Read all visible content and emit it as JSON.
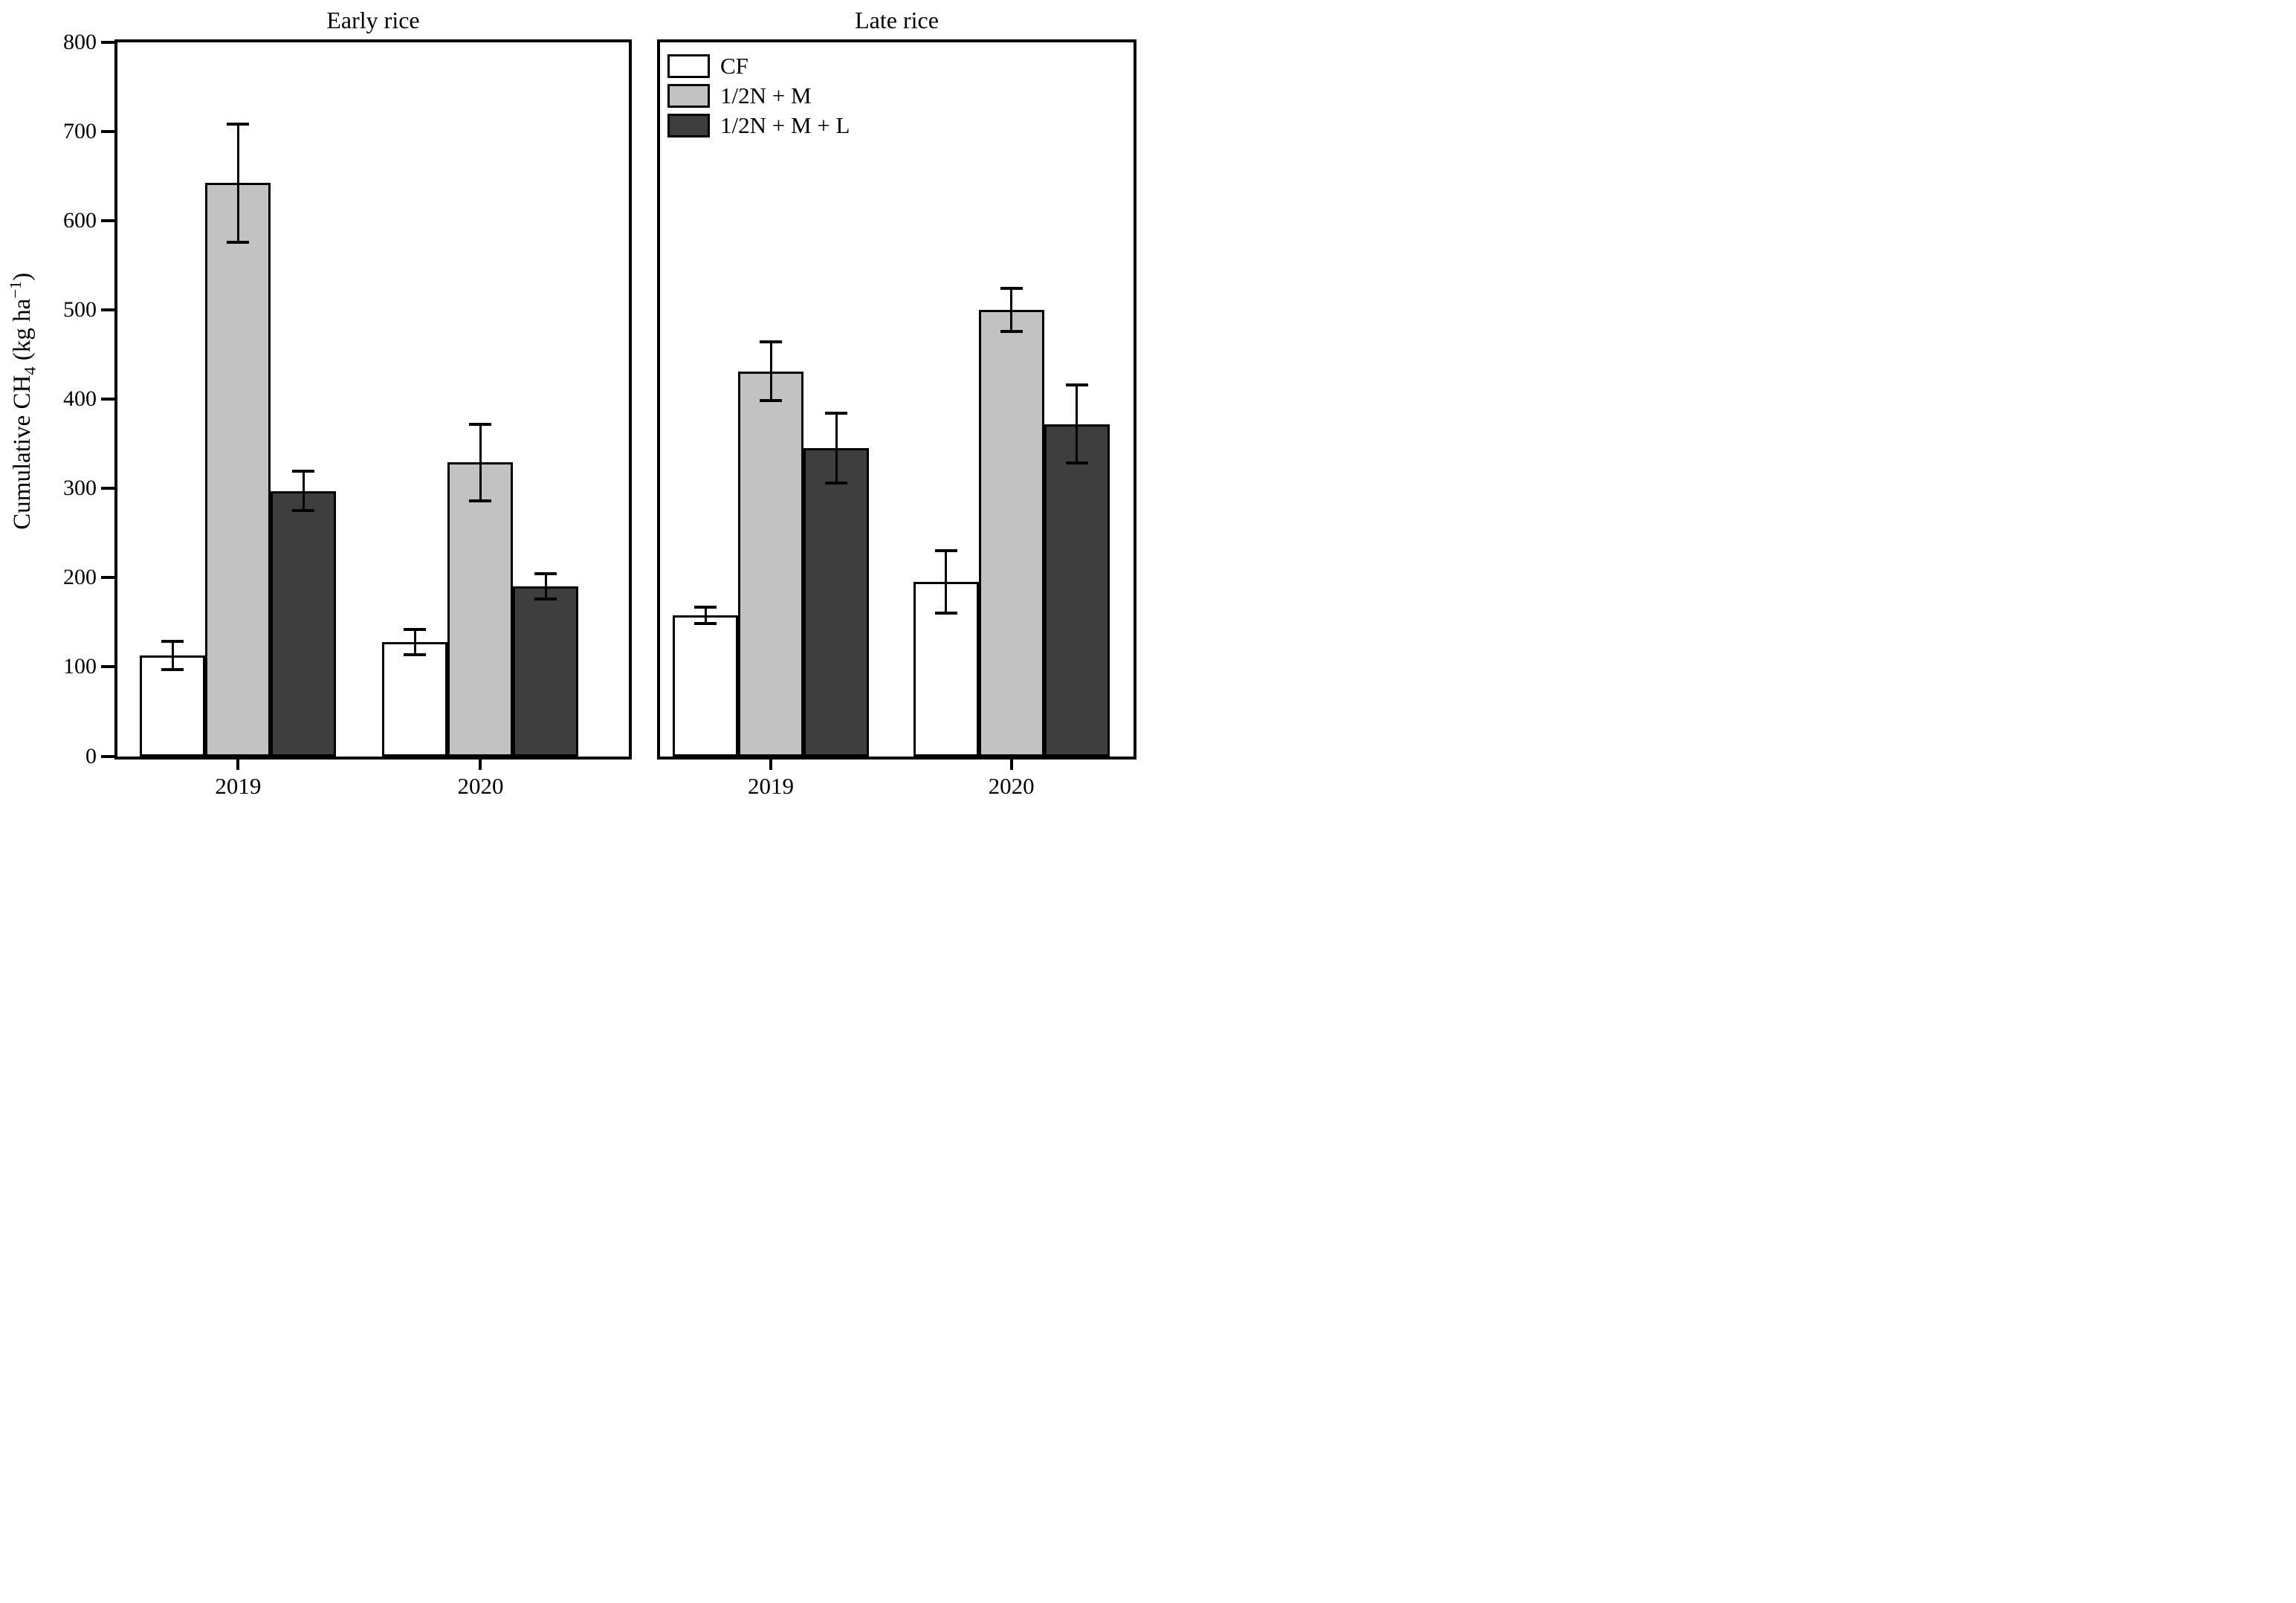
{
  "y_axis": {
    "label_prefix": "Cumulative CH",
    "label_sub": "4",
    "label_mid": " (kg ha",
    "label_sup": "−1",
    "label_suffix": ")",
    "ticks": [
      0,
      100,
      200,
      300,
      400,
      500,
      600,
      700,
      800
    ]
  },
  "legend": {
    "items": [
      {
        "label": "CF",
        "color": "#ffffff"
      },
      {
        "label": "1/2N + M",
        "color": "#c2c2c2"
      },
      {
        "label": "1/2N + M + L",
        "color": "#3e3e3e"
      }
    ]
  },
  "chart_data": [
    {
      "type": "bar",
      "title": "Early rice",
      "categories": [
        "2019",
        "2020"
      ],
      "xlabel": "",
      "ylabel": "Cumulative CH4 (kg ha-1)",
      "ylim": [
        0,
        800
      ],
      "ytick_step": 100,
      "grid": false,
      "legend_visible": false,
      "series": [
        {
          "name": "CF",
          "fill": "#ffffff",
          "values": [
            113,
            128
          ],
          "errors": [
            16,
            14
          ]
        },
        {
          "name": "1/2N + M",
          "fill": "#c2c2c2",
          "values": [
            642,
            329
          ],
          "errors": [
            66,
            43
          ]
        },
        {
          "name": "1/2N + M + L",
          "fill": "#3e3e3e",
          "values": [
            297,
            190
          ],
          "errors": [
            22,
            14
          ]
        }
      ]
    },
    {
      "type": "bar",
      "title": "Late rice",
      "categories": [
        "2019",
        "2020"
      ],
      "xlabel": "",
      "ylabel": "Cumulative CH4 (kg ha-1)",
      "ylim": [
        0,
        800
      ],
      "ytick_step": 100,
      "grid": false,
      "legend_visible": true,
      "legend_position": "top-left",
      "series": [
        {
          "name": "CF",
          "fill": "#ffffff",
          "values": [
            158,
            195
          ],
          "errors": [
            9,
            35
          ]
        },
        {
          "name": "1/2N + M",
          "fill": "#c2c2c2",
          "values": [
            431,
            500
          ],
          "errors": [
            33,
            24
          ]
        },
        {
          "name": "1/2N + M + L",
          "fill": "#3e3e3e",
          "values": [
            345,
            372
          ],
          "errors": [
            39,
            44
          ]
        }
      ]
    }
  ]
}
